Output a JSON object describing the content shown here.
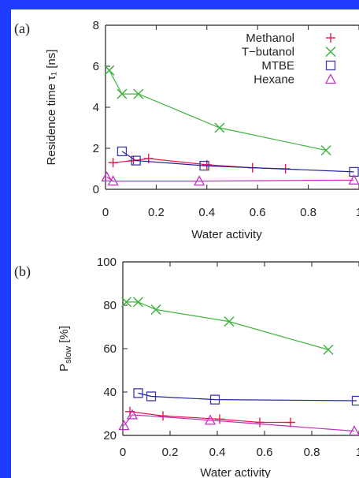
{
  "chart_data": [
    {
      "panel_label": "(a)",
      "type": "line",
      "xlabel": "Water activity",
      "ylabel": "Residence time τ₁ [ns]",
      "xlim": [
        0,
        1
      ],
      "ylim": [
        0,
        8
      ],
      "xticks": [
        "0",
        "0.2",
        "0.4",
        "0.6",
        "0.8",
        "1"
      ],
      "yticks": [
        "0",
        "2",
        "4",
        "6",
        "8"
      ],
      "legend_position": "top-right",
      "series": [
        {
          "name": "Methanol",
          "marker": "plus",
          "color": "#e8174a",
          "line_color": "#e8174a",
          "x": [
            0.03,
            0.11,
            0.17,
            0.4,
            0.58,
            0.71
          ],
          "y": [
            1.3,
            1.4,
            1.5,
            1.2,
            1.05,
            1.0
          ]
        },
        {
          "name": "T−butanol",
          "marker": "cross",
          "color": "#3fb33f",
          "line_color": "#3fb33f",
          "x": [
            0.015,
            0.065,
            0.13,
            0.45,
            0.87
          ],
          "y": [
            5.8,
            4.65,
            4.65,
            3.0,
            1.9
          ]
        },
        {
          "name": "MTBE",
          "marker": "square",
          "color": "#3a3aa8",
          "line_color": "#1f1fa0",
          "x": [
            0.065,
            0.12,
            0.39,
            0.98
          ],
          "y": [
            1.85,
            1.4,
            1.15,
            0.85
          ]
        },
        {
          "name": "Hexane",
          "marker": "triangle",
          "color": "#c22fc2",
          "line_color": "#c22fc2",
          "x": [
            0.005,
            0.03,
            0.37,
            0.98
          ],
          "y": [
            0.6,
            0.4,
            0.4,
            0.45
          ]
        }
      ]
    },
    {
      "panel_label": "(b)",
      "type": "line",
      "xlabel": "Water activity",
      "ylabel": "P_slow [%]",
      "ylabel_main": "P",
      "ylabel_sub": "slow",
      "ylabel_unit": " [%]",
      "xlim": [
        0,
        1
      ],
      "ylim": [
        20,
        100
      ],
      "xticks": [
        "0",
        "0.2",
        "0.4",
        "0.6",
        "0.8",
        "1"
      ],
      "yticks": [
        "20",
        "40",
        "60",
        "80",
        "100"
      ],
      "series": [
        {
          "name": "Methanol",
          "marker": "plus",
          "color": "#e8174a",
          "line_color": "#e8174a",
          "x": [
            0.03,
            0.17,
            0.41,
            0.58,
            0.71
          ],
          "y": [
            31,
            29,
            27.5,
            26,
            26
          ]
        },
        {
          "name": "T−butanol",
          "marker": "cross",
          "color": "#3fb33f",
          "line_color": "#3fb33f",
          "x": [
            0.015,
            0.065,
            0.14,
            0.45,
            0.87
          ],
          "y": [
            81.5,
            81.5,
            78,
            72.5,
            59.5
          ]
        },
        {
          "name": "MTBE",
          "marker": "square",
          "color": "#3a3aa8",
          "line_color": "#1f1fa0",
          "x": [
            0.065,
            0.12,
            0.39,
            0.99
          ],
          "y": [
            39.5,
            38,
            36.5,
            36
          ]
        },
        {
          "name": "Hexane",
          "marker": "triangle",
          "color": "#c22fc2",
          "line_color": "#c22fc2",
          "x": [
            0.005,
            0.04,
            0.37,
            0.98
          ],
          "y": [
            24.5,
            29.5,
            27,
            22
          ]
        }
      ]
    }
  ]
}
